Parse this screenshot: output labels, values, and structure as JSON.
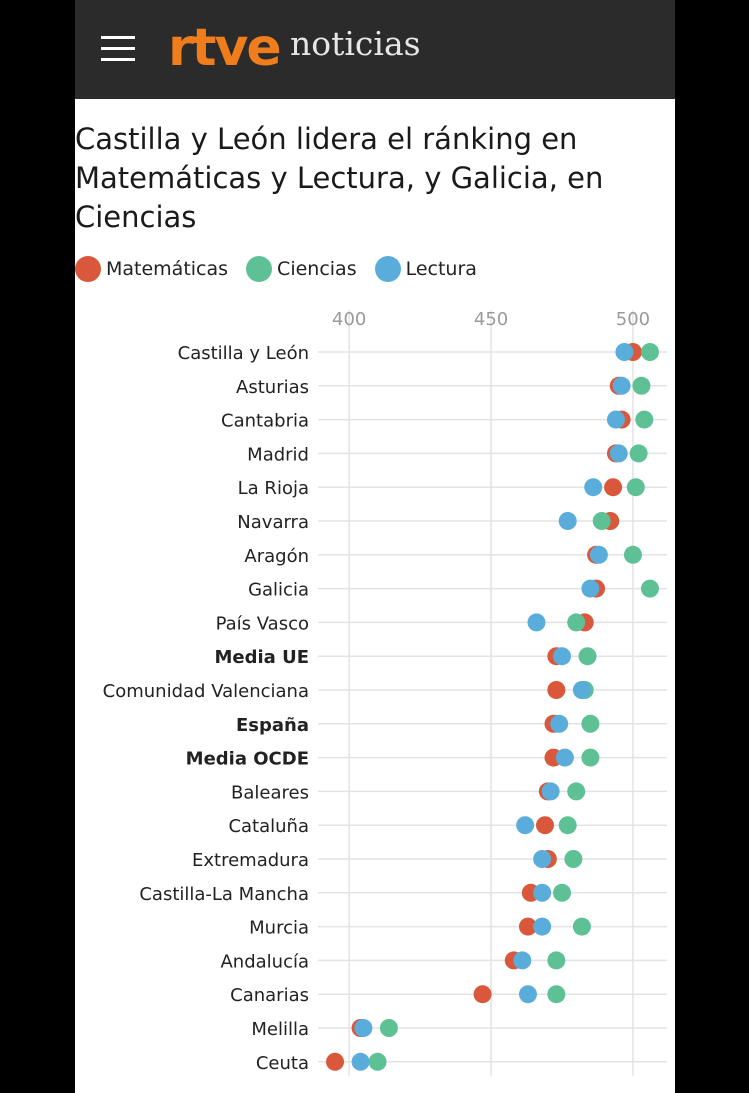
{
  "header": {
    "logo": "rtve",
    "section": "noticias"
  },
  "colors": {
    "topbar": "#2b2b2b",
    "logo": "#f07d1b",
    "Matemáticas": "#d9583c",
    "Ciencias": "#5ec196",
    "Lectura": "#5aaddb"
  },
  "chart_data": {
    "type": "scatter",
    "title": "Castilla y León lidera el ránking en Matemáticas y Lectura, y Galicia, en Ciencias",
    "xlim": [
      389,
      512
    ],
    "xticks": [
      400,
      450,
      500
    ],
    "grid": true,
    "legend_position": "top-left",
    "categories": [
      "Castilla y León",
      "Asturias",
      "Cantabria",
      "Madrid",
      "La Rioja",
      "Navarra",
      "Aragón",
      "Galicia",
      "País Vasco",
      "Media UE",
      "Comunidad Valenciana",
      "España",
      "Media OCDE",
      "Baleares",
      "Cataluña",
      "Extremadura",
      "Castilla-La Mancha",
      "Murcia",
      "Andalucía",
      "Canarias",
      "Melilla",
      "Ceuta"
    ],
    "bold_categories": [
      "Media UE",
      "España",
      "Media OCDE"
    ],
    "series": [
      {
        "name": "Matemáticas",
        "values": [
          500,
          495,
          496,
          494,
          493,
          492,
          487,
          487,
          483,
          473,
          473,
          472,
          472,
          470,
          469,
          470,
          464,
          463,
          458,
          447,
          404,
          395
        ]
      },
      {
        "name": "Ciencias",
        "values": [
          506,
          503,
          504,
          502,
          501,
          489,
          500,
          506,
          480,
          484,
          483,
          485,
          485,
          480,
          477,
          479,
          475,
          482,
          473,
          473,
          414,
          410
        ]
      },
      {
        "name": "Lectura",
        "values": [
          497,
          496,
          494,
          495,
          486,
          477,
          488,
          485,
          466,
          475,
          482,
          474,
          476,
          471,
          462,
          468,
          468,
          468,
          461,
          463,
          405,
          404
        ]
      }
    ]
  }
}
